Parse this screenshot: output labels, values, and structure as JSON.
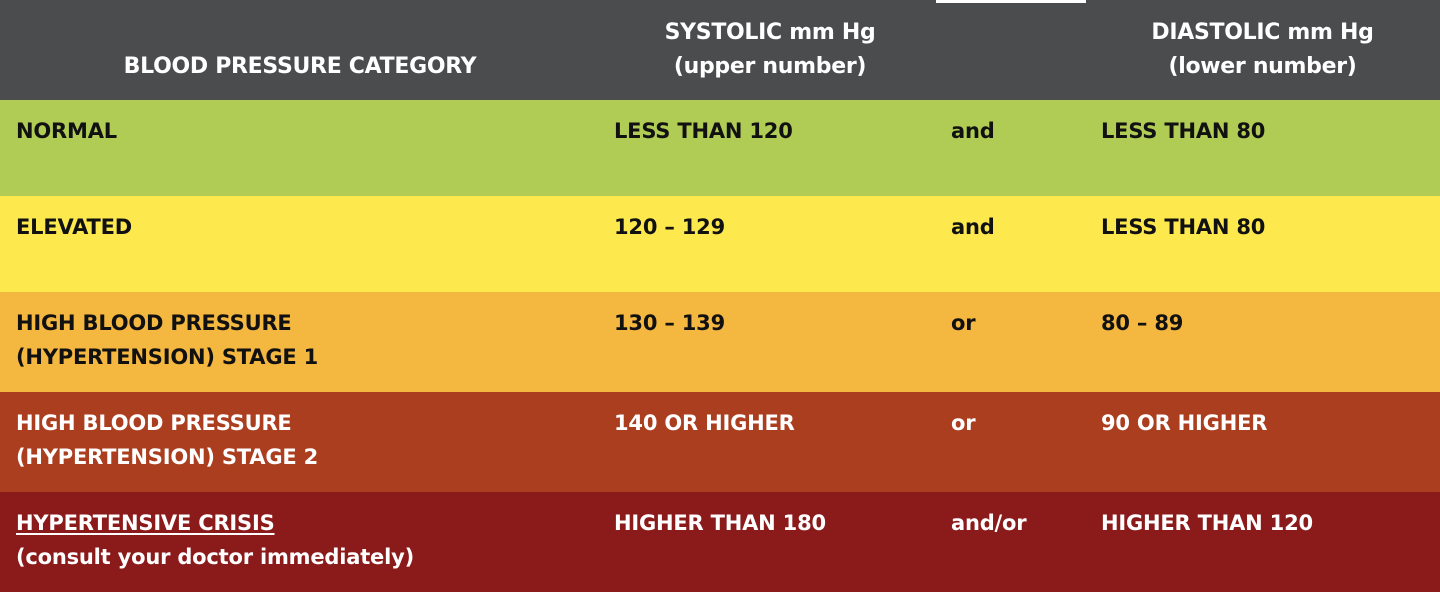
{
  "header": {
    "category": "BLOOD PRESSURE CATEGORY",
    "systolic_line1": "SYSTOLIC mm Hg",
    "systolic_line2": "(upper number)",
    "diastolic_line1": "DIASTOLIC mm Hg",
    "diastolic_line2": "(lower number)"
  },
  "rows": [
    {
      "category_line1": "NORMAL",
      "category_line2": "",
      "systolic": "LESS THAN 120",
      "conjunction": "and",
      "diastolic": "LESS THAN 80",
      "color": "#b0cc55"
    },
    {
      "category_line1": "ELEVATED",
      "category_line2": "",
      "systolic": "120 – 129",
      "conjunction": "and",
      "diastolic": "LESS THAN 80",
      "color": "#fde94e"
    },
    {
      "category_line1": "HIGH BLOOD PRESSURE",
      "category_line2": "(HYPERTENSION) STAGE 1",
      "systolic": "130 – 139",
      "conjunction": "or",
      "diastolic": "80 – 89",
      "color": "#f4b740"
    },
    {
      "category_line1": "HIGH BLOOD PRESSURE",
      "category_line2": "(HYPERTENSION) STAGE 2",
      "systolic": "140 OR HIGHER",
      "conjunction": "or",
      "diastolic": "90 OR HIGHER",
      "color": "#ab3e1f"
    },
    {
      "category_line1": "HYPERTENSIVE CRISIS",
      "category_line2": "(consult your doctor immediately)",
      "systolic": "HIGHER THAN 180",
      "conjunction": "and/or",
      "diastolic": "HIGHER THAN 120",
      "color": "#8b1a1b"
    }
  ],
  "colors": {
    "header_background": "#4b4c4e",
    "dark_text": "#111111",
    "light_text": "#ffffff"
  }
}
